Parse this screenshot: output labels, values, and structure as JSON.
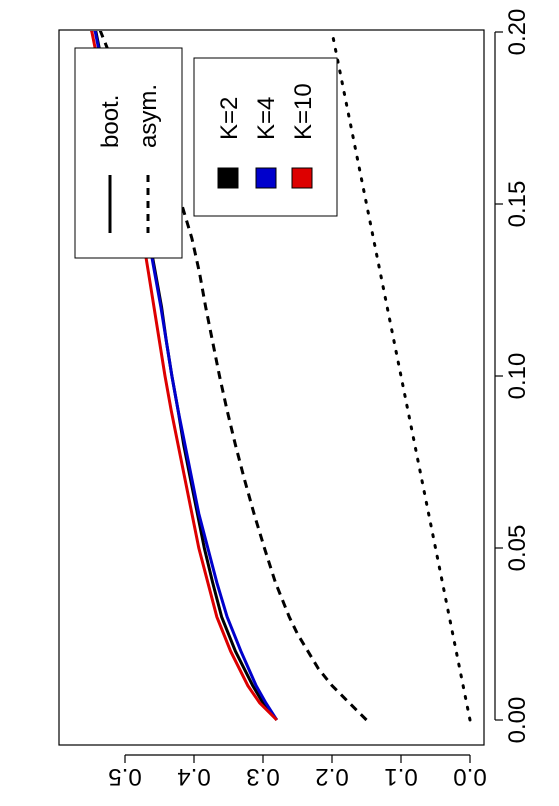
{
  "chart_data": {
    "type": "line",
    "orientation": "rotated-90-clockwise",
    "title": "",
    "xlabel": "",
    "ylabel": "",
    "xlim": [
      0.0,
      0.2
    ],
    "ylim": [
      0.0,
      0.6
    ],
    "grid": false,
    "x_ticks": [
      0.0,
      0.05,
      0.1,
      0.15,
      0.2
    ],
    "x_tick_labels": [
      "0.00",
      "0.05",
      "0.10",
      "0.15",
      "0.20"
    ],
    "y_ticks": [
      0.0,
      0.1,
      0.2,
      0.3,
      0.4,
      0.5
    ],
    "y_tick_labels": [
      "0.0",
      "0.1",
      "0.2",
      "0.3",
      "0.4",
      "0.5"
    ],
    "legend_linetype": {
      "placement": "top-left",
      "entries": [
        {
          "label": "boot.",
          "linestyle": "solid"
        },
        {
          "label": "asym.",
          "linestyle": "dashed"
        }
      ]
    },
    "legend_color": {
      "placement": "top-center",
      "entries": [
        {
          "label": "K=2",
          "color": "#000000"
        },
        {
          "label": "K=4",
          "color": "#0000cc"
        },
        {
          "label": "K=10",
          "color": "#dd0000"
        }
      ]
    },
    "series": [
      {
        "color": "#000000",
        "linestyle": "solid",
        "width": 3,
        "x": [
          0.0,
          0.005,
          0.01,
          0.02,
          0.03,
          0.04,
          0.05,
          0.06,
          0.07,
          0.08,
          0.09,
          0.1,
          0.11,
          0.12,
          0.13,
          0.14,
          0.15,
          0.16,
          0.17,
          0.18,
          0.19,
          0.2,
          0.205
        ],
        "y": [
          0.28,
          0.3,
          0.315,
          0.34,
          0.36,
          0.373,
          0.385,
          0.395,
          0.405,
          0.415,
          0.423,
          0.432,
          0.44,
          0.447,
          0.456,
          0.465,
          0.475,
          0.49,
          0.505,
          0.52,
          0.532,
          0.542,
          0.55
        ]
      },
      {
        "color": "#0000cc",
        "linestyle": "solid",
        "width": 3,
        "x": [
          0.0,
          0.005,
          0.01,
          0.02,
          0.03,
          0.04,
          0.05,
          0.06,
          0.07,
          0.08,
          0.09,
          0.1,
          0.11,
          0.12,
          0.13,
          0.14,
          0.15,
          0.16,
          0.17,
          0.18,
          0.19,
          0.2,
          0.205
        ],
        "y": [
          0.28,
          0.296,
          0.31,
          0.332,
          0.352,
          0.367,
          0.38,
          0.393,
          0.403,
          0.413,
          0.423,
          0.432,
          0.44,
          0.448,
          0.457,
          0.466,
          0.476,
          0.492,
          0.507,
          0.521,
          0.533,
          0.543,
          0.552
        ]
      },
      {
        "color": "#dd0000",
        "linestyle": "solid",
        "width": 3,
        "x": [
          0.0,
          0.005,
          0.01,
          0.02,
          0.03,
          0.04,
          0.05,
          0.06,
          0.07,
          0.08,
          0.09,
          0.1,
          0.11,
          0.12,
          0.13,
          0.14,
          0.15,
          0.16,
          0.17,
          0.18,
          0.19,
          0.2,
          0.205
        ],
        "y": [
          0.28,
          0.305,
          0.322,
          0.347,
          0.367,
          0.38,
          0.393,
          0.403,
          0.413,
          0.423,
          0.433,
          0.442,
          0.45,
          0.458,
          0.466,
          0.474,
          0.484,
          0.498,
          0.512,
          0.526,
          0.538,
          0.548,
          0.556
        ]
      },
      {
        "color": "#000000",
        "linestyle": "dashed",
        "width": 3,
        "x": [
          0.0,
          0.003,
          0.006,
          0.01,
          0.015,
          0.02,
          0.025,
          0.03,
          0.04,
          0.05,
          0.06,
          0.07,
          0.08,
          0.09,
          0.1,
          0.11,
          0.12,
          0.13,
          0.14,
          0.15,
          0.16,
          0.17,
          0.18,
          0.19,
          0.2,
          0.205
        ],
        "y": [
          0.15,
          0.165,
          0.18,
          0.2,
          0.22,
          0.235,
          0.25,
          0.262,
          0.282,
          0.298,
          0.313,
          0.327,
          0.34,
          0.352,
          0.363,
          0.373,
          0.383,
          0.392,
          0.403,
          0.418,
          0.44,
          0.47,
          0.495,
          0.515,
          0.535,
          0.545
        ]
      },
      {
        "color": "#000000",
        "linestyle": "dotted",
        "width": 3,
        "x": [
          0.0,
          0.2
        ],
        "y": [
          0.0,
          0.2
        ]
      }
    ]
  }
}
